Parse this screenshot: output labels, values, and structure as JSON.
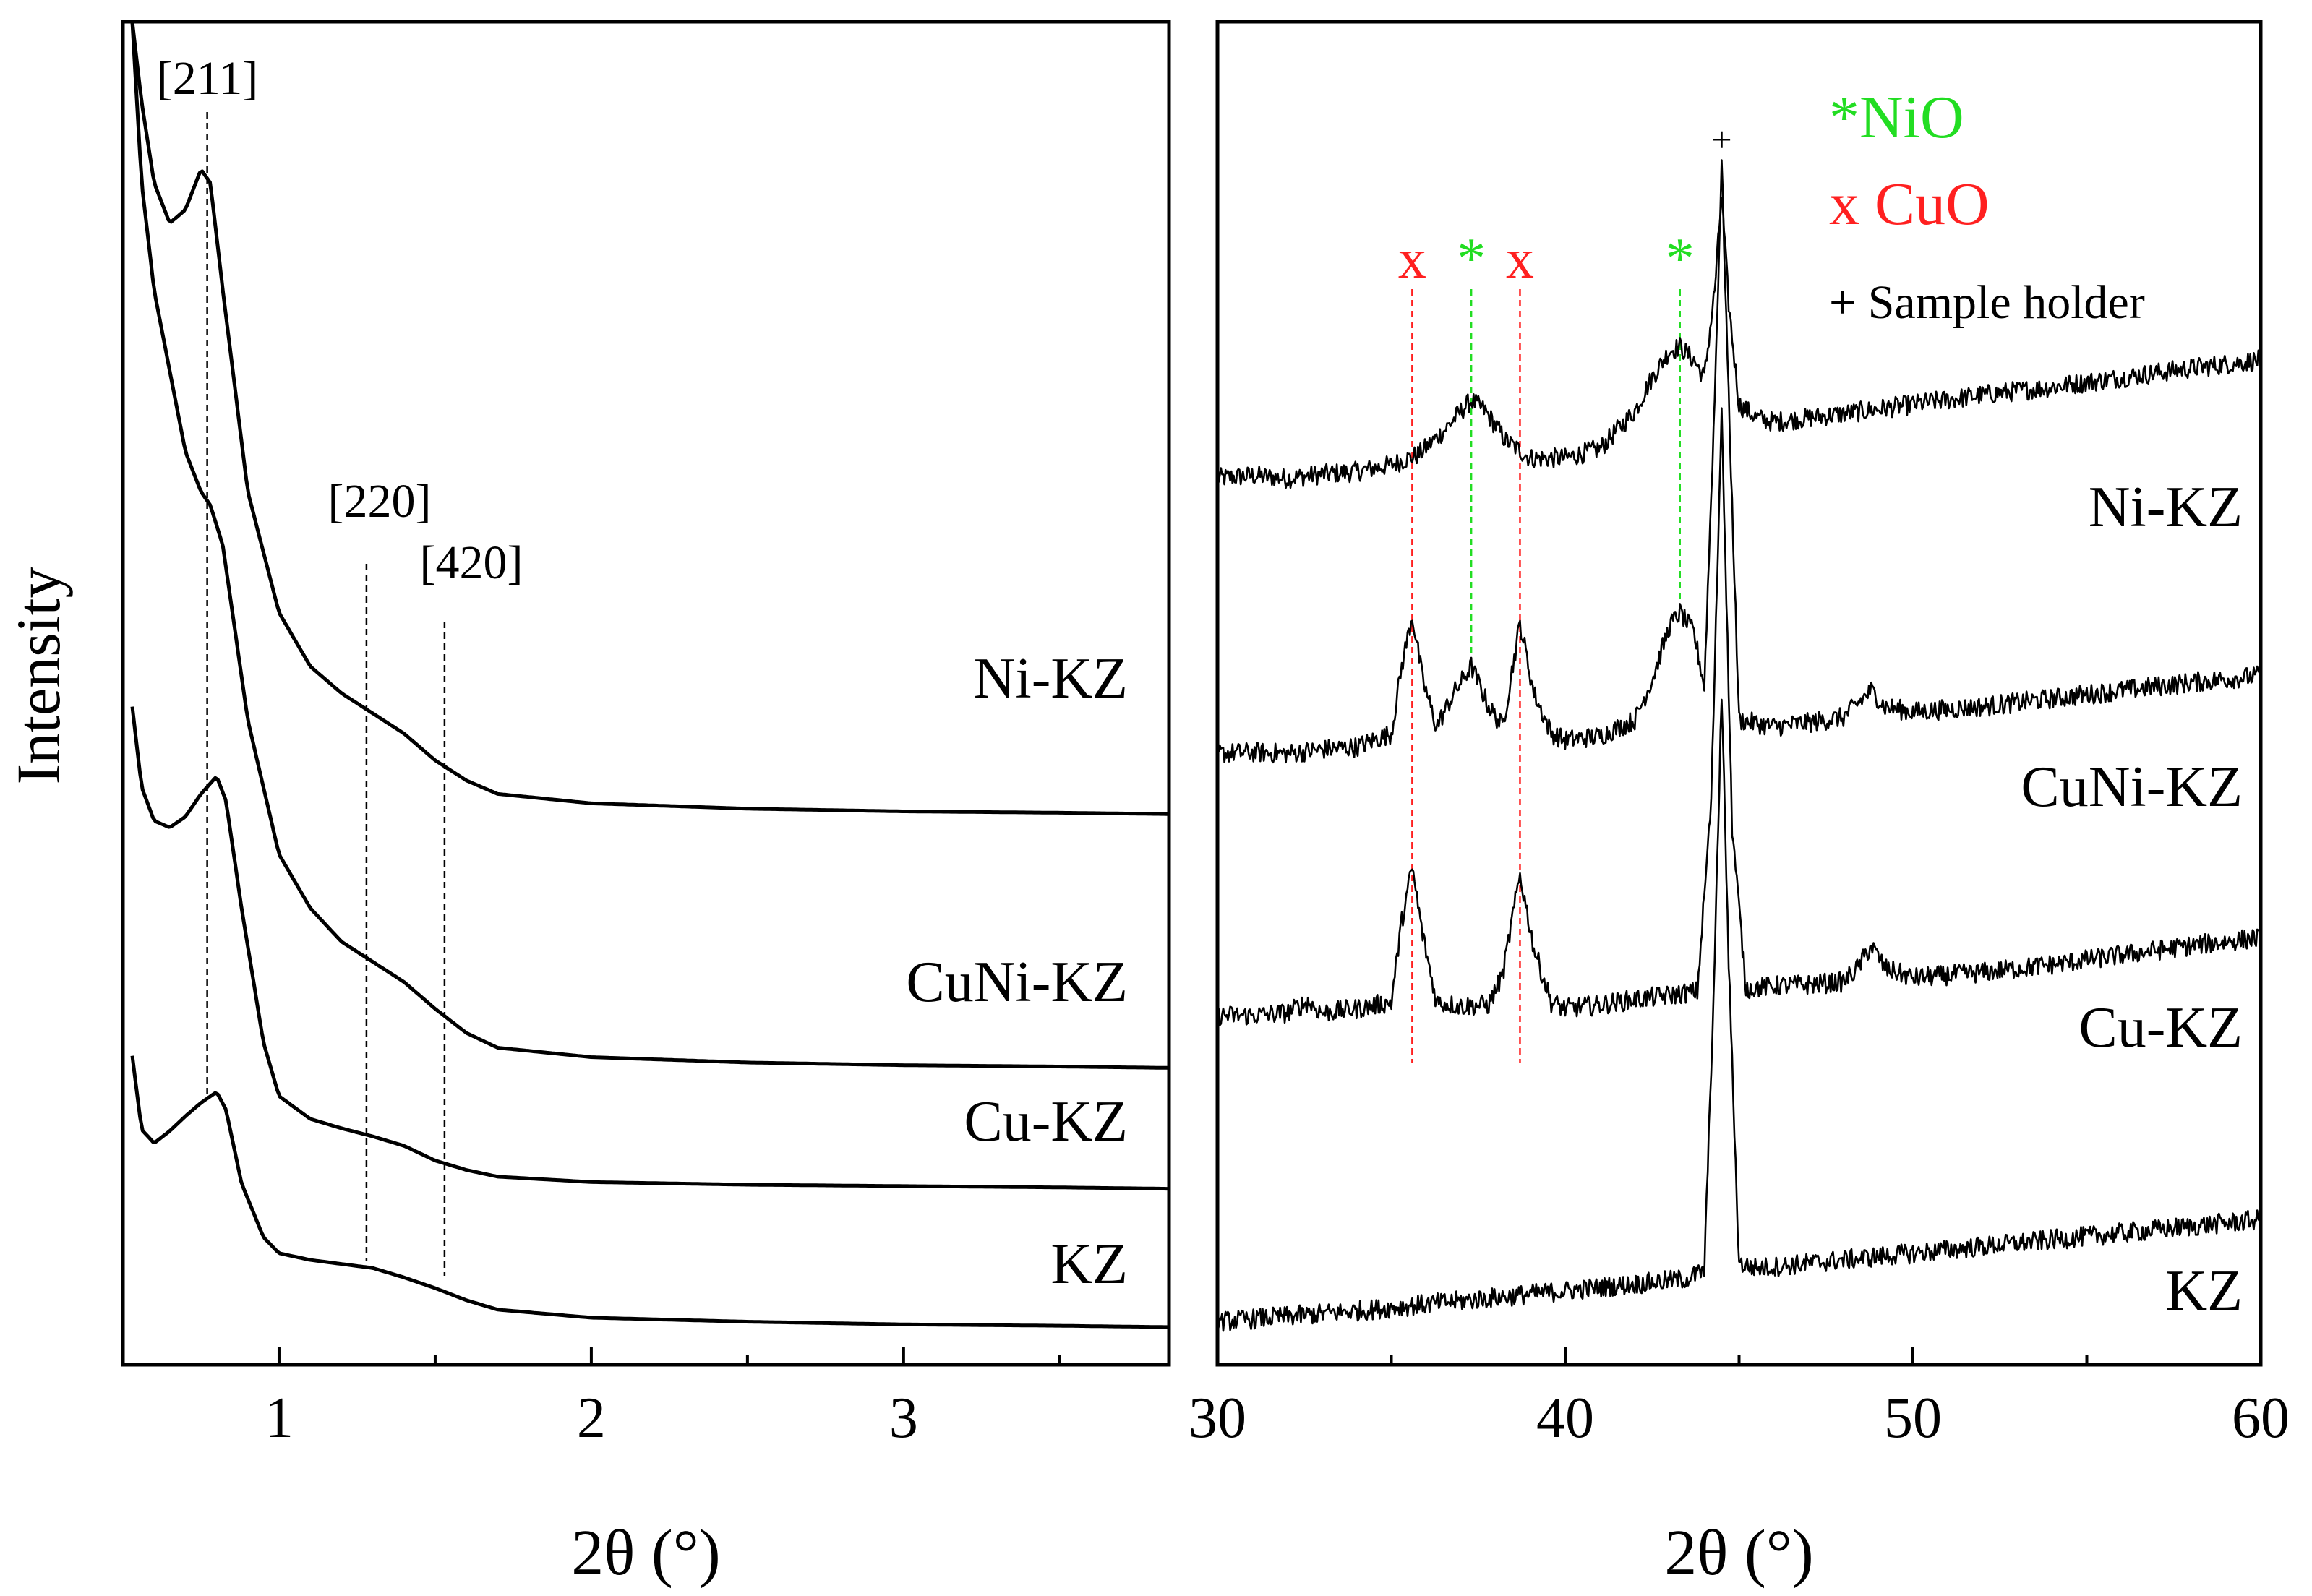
{
  "chart_data": [
    {
      "type": "line",
      "xlabel": "2θ (°)",
      "ylabel": "Intensity",
      "xlim": [
        0.5,
        3.85
      ],
      "ylim": [
        0,
        100
      ],
      "xticks": [
        1,
        2,
        3
      ],
      "xtick_labels": [
        "1",
        "2",
        "3"
      ],
      "yticks": [],
      "grid": false,
      "reference_lines": [
        {
          "label": "[211]",
          "x": 0.77,
          "color": "#000000"
        },
        {
          "label": "[220]",
          "x": 1.28,
          "color": "#000000"
        },
        {
          "label": "[420]",
          "x": 1.53,
          "color": "#000000"
        }
      ],
      "series": [
        {
          "name": "Ni-KZ",
          "x": [
            0.53,
            0.56,
            0.6,
            0.65,
            0.7,
            0.75,
            0.78,
            0.82,
            0.9,
            1.0,
            1.1,
            1.2,
            1.3,
            1.4,
            1.5,
            1.6,
            1.7,
            2.0,
            2.5,
            3.0,
            3.5,
            3.85
          ],
          "y": [
            100,
            94,
            88,
            85,
            86,
            89,
            88,
            80,
            65,
            56,
            52,
            50,
            48.5,
            47,
            45,
            43.5,
            42.5,
            41.8,
            41.4,
            41.2,
            41.1,
            41.0
          ]
        },
        {
          "name": "CuNi-KZ",
          "x": [
            0.53,
            0.56,
            0.6,
            0.65,
            0.7,
            0.75,
            0.78,
            0.82,
            0.9,
            1.0,
            1.1,
            1.2,
            1.3,
            1.4,
            1.5,
            1.6,
            1.7,
            2.0,
            2.5,
            3.0,
            3.5,
            3.85
          ],
          "y": [
            100,
            88,
            80,
            74,
            68,
            65,
            64,
            61,
            48,
            38,
            34,
            31.5,
            30,
            28.5,
            26.5,
            24.7,
            23.6,
            22.9,
            22.5,
            22.3,
            22.2,
            22.1
          ]
        },
        {
          "name": "Cu-KZ",
          "x": [
            0.53,
            0.56,
            0.6,
            0.65,
            0.7,
            0.75,
            0.8,
            0.83,
            0.88,
            0.95,
            1.0,
            1.1,
            1.2,
            1.3,
            1.4,
            1.5,
            1.6,
            1.7,
            2.0,
            2.5,
            3.0,
            3.5,
            3.85
          ],
          "y": [
            49,
            43,
            40.5,
            40,
            40.8,
            42.5,
            43.8,
            42,
            34,
            24,
            20,
            18.3,
            17.6,
            17,
            16.3,
            15.2,
            14.5,
            14,
            13.6,
            13.4,
            13.3,
            13.2,
            13.1
          ]
        },
        {
          "name": "KZ",
          "x": [
            0.53,
            0.56,
            0.6,
            0.65,
            0.7,
            0.75,
            0.8,
            0.83,
            0.88,
            0.95,
            1.0,
            1.1,
            1.2,
            1.3,
            1.4,
            1.5,
            1.6,
            1.7,
            2.0,
            2.5,
            3.0,
            3.5,
            3.85
          ],
          "y": [
            23,
            17.5,
            16.5,
            17.4,
            18.5,
            19.5,
            20.3,
            19,
            13.5,
            9.5,
            8.3,
            7.8,
            7.5,
            7.2,
            6.5,
            5.7,
            4.8,
            4.1,
            3.5,
            3.2,
            3.0,
            2.9,
            2.8
          ]
        }
      ]
    },
    {
      "type": "line",
      "xlabel": "2θ (°)",
      "xlim": [
        30,
        60
      ],
      "ylim": [
        0,
        100
      ],
      "xticks": [
        30,
        40,
        50,
        60
      ],
      "xtick_labels": [
        "30",
        "40",
        "50",
        "60"
      ],
      "yticks": [],
      "grid": false,
      "legend": [
        {
          "text": "*NiO",
          "color": "#22dd22"
        },
        {
          "text": "x CuO",
          "color": "#ff2020"
        },
        {
          "text": "+ Sample holder",
          "color": "#000000"
        }
      ],
      "legend_position": "top-right",
      "reference_lines": [
        {
          "label": "x",
          "x": 35.6,
          "color": "#ff2020"
        },
        {
          "label": "*",
          "x": 37.3,
          "color": "#22dd22"
        },
        {
          "label": "x",
          "x": 38.7,
          "color": "#ff2020"
        },
        {
          "label": "*",
          "x": 43.3,
          "color": "#22dd22"
        },
        {
          "label": "+",
          "x": 44.5,
          "color": "#000000"
        }
      ],
      "series": [
        {
          "name": "Ni-KZ",
          "x": [
            30,
            31,
            32,
            33,
            34,
            35,
            35.8,
            36.5,
            37.0,
            37.3,
            37.7,
            38.3,
            39.0,
            40,
            41,
            42,
            42.5,
            43.0,
            43.3,
            43.7,
            44.0,
            44.3,
            44.5,
            44.7,
            45.0,
            45.5,
            46,
            48,
            50,
            52,
            54,
            56,
            58,
            60
          ],
          "y": [
            66.0,
            66.2,
            66.0,
            66.3,
            66.5,
            67.0,
            67.8,
            69.5,
            71.0,
            71.8,
            71.0,
            68.8,
            67.5,
            67.5,
            68.2,
            71.0,
            73.5,
            75.5,
            75.8,
            74.8,
            73.5,
            80,
            87.0,
            79,
            71.5,
            70.5,
            70.2,
            70.8,
            71.5,
            72.2,
            72.8,
            73.5,
            74.2,
            74.8
          ]
        },
        {
          "name": "CuNi-KZ",
          "x": [
            30,
            31,
            32,
            33,
            34,
            35,
            35.3,
            35.6,
            35.9,
            36.3,
            36.8,
            37.3,
            37.8,
            38.2,
            38.7,
            39.1,
            39.6,
            40,
            41,
            42,
            42.5,
            43.0,
            43.3,
            43.7,
            44.0,
            44.3,
            44.5,
            44.7,
            45.0,
            46,
            47,
            48,
            48.4,
            48.8,
            49.2,
            50,
            52,
            54,
            56,
            58,
            60
          ],
          "y": [
            45.5,
            45.6,
            45.5,
            45.8,
            46.0,
            47.0,
            52.0,
            55.8,
            51.0,
            47.5,
            50.0,
            52.0,
            49.0,
            47.5,
            55.2,
            50.0,
            47.0,
            46.5,
            46.8,
            48.0,
            51.0,
            55.0,
            56.0,
            54.5,
            50.5,
            72,
            89.5,
            72,
            48.0,
            47.5,
            47.8,
            48.2,
            49.2,
            50.2,
            49.0,
            48.6,
            49.0,
            49.6,
            50.2,
            50.8,
            51.3
          ]
        },
        {
          "name": "Cu-KZ",
          "x": [
            30,
            31,
            32,
            32.6,
            33,
            34,
            35,
            35.3,
            35.6,
            35.9,
            36.3,
            37,
            37.8,
            38.2,
            38.7,
            39.1,
            39.6,
            40,
            41,
            42,
            43,
            43.8,
            44.2,
            44.5,
            44.8,
            45.2,
            46,
            47,
            48,
            48.4,
            48.8,
            49.2,
            50,
            52,
            54,
            56,
            58,
            60
          ],
          "y": [
            26.0,
            26.0,
            26.2,
            27.0,
            26.2,
            26.5,
            27.0,
            33.0,
            37.0,
            32.0,
            27.0,
            26.7,
            26.8,
            29.0,
            36.5,
            31.0,
            27.0,
            26.5,
            26.8,
            27.2,
            27.5,
            27.8,
            42,
            71.2,
            40,
            28.0,
            28.2,
            28.3,
            28.5,
            29.5,
            31.2,
            29.5,
            28.8,
            29.2,
            29.8,
            30.5,
            31.2,
            31.8
          ]
        },
        {
          "name": "KZ",
          "x": [
            30,
            32,
            34,
            36,
            38,
            40,
            42,
            43.5,
            44.0,
            44.3,
            44.5,
            44.7,
            45.0,
            45.5,
            46,
            48,
            50,
            52,
            54,
            56,
            58,
            60
          ],
          "y": [
            3.2,
            3.6,
            4.0,
            4.5,
            5.0,
            5.5,
            6.0,
            6.4,
            7.0,
            30,
            50.0,
            30,
            7.5,
            7.2,
            7.3,
            7.8,
            8.3,
            8.8,
            9.3,
            9.8,
            10.3,
            10.8
          ]
        }
      ]
    }
  ]
}
